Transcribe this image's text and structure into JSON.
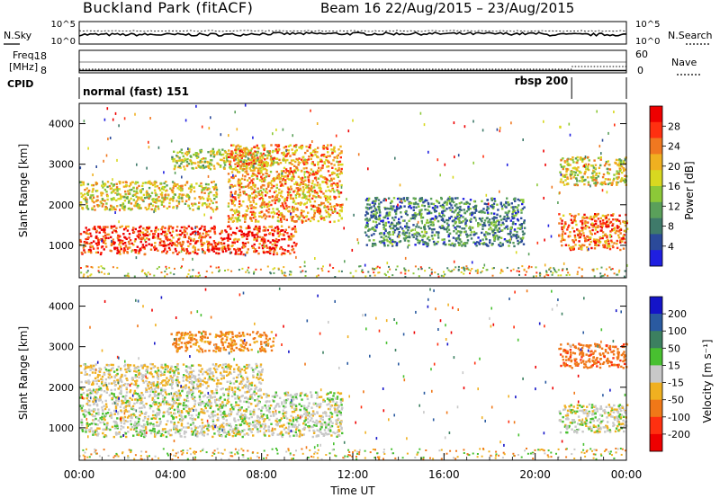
{
  "chart_data": [
    {
      "type": "line",
      "panel": "noise",
      "title": "Buckland Park (fitACF)",
      "subtitle": "Beam 16 22/Aug/2015 – 23/Aug/2015",
      "left_label": "N.Sky",
      "right_label": "N.Search",
      "left_ticks": [
        "10^5",
        "10^0"
      ],
      "right_ticks": [
        "10^5",
        "10^0"
      ]
    },
    {
      "type": "line",
      "panel": "frequency",
      "left_label_lines": [
        "Freq.",
        "[MHz]"
      ],
      "right_label": "Nave",
      "left_ticks": [
        "18",
        "8"
      ],
      "right_ticks": [
        "60",
        "0"
      ],
      "freq_mhz": 9.0
    },
    {
      "type": "table",
      "panel": "cpid",
      "label": "CPID",
      "segments": [
        {
          "name": "normal (fast) 151",
          "start_hour": 0.0,
          "end_hour": 21.6
        },
        {
          "name": "rbsp 200",
          "start_hour": 21.6,
          "end_hour": 24.0
        }
      ]
    },
    {
      "type": "heatmap",
      "panel": "power",
      "ylabel": "Slant Range [km]",
      "yticks": [
        1000,
        2000,
        3000,
        4000
      ],
      "ylim": [
        200,
        4500
      ],
      "xlim": [
        0,
        24
      ],
      "colorbar": {
        "label": "Power [dB]",
        "ticks": [
          "4",
          "8",
          "12",
          "16",
          "20",
          "24",
          "28"
        ],
        "range": [
          0,
          32
        ],
        "colors": [
          "#1f1fe0",
          "#2b4a9a",
          "#3f7a6a",
          "#5aa05a",
          "#8cc838",
          "#d8d820",
          "#f0b020",
          "#f07820",
          "#ff3010",
          "#ee0000"
        ]
      },
      "echo_regions": [
        {
          "start_hour": 0.0,
          "end_hour": 9.5,
          "range_from_km": 800,
          "range_to_km": 1500,
          "power_db": 27
        },
        {
          "start_hour": 0.0,
          "end_hour": 6.0,
          "range_from_km": 1900,
          "range_to_km": 2600,
          "power_db": 18
        },
        {
          "start_hour": 4.0,
          "end_hour": 8.5,
          "range_from_km": 2900,
          "range_to_km": 3400,
          "power_db": 16
        },
        {
          "start_hour": 6.5,
          "end_hour": 11.5,
          "range_from_km": 1600,
          "range_to_km": 3500,
          "power_db": 22
        },
        {
          "start_hour": 12.5,
          "end_hour": 19.5,
          "range_from_km": 1000,
          "range_to_km": 2200,
          "power_db": 9
        },
        {
          "start_hour": 21.0,
          "end_hour": 24.0,
          "range_from_km": 900,
          "range_to_km": 1800,
          "power_db": 25
        },
        {
          "start_hour": 21.0,
          "end_hour": 24.0,
          "range_from_km": 2500,
          "range_to_km": 3200,
          "power_db": 18
        }
      ]
    },
    {
      "type": "heatmap",
      "panel": "velocity",
      "ylabel": "Slant Range [km]",
      "xlabel": "Time UT",
      "yticks": [
        1000,
        2000,
        3000,
        4000
      ],
      "ylim": [
        200,
        4500
      ],
      "xlim": [
        0,
        24
      ],
      "xticks": [
        "00:00",
        "04:00",
        "08:00",
        "12:00",
        "16:00",
        "20:00",
        "00:00"
      ],
      "colorbar": {
        "label": "Velocity [m s⁻¹]",
        "ticks": [
          "200",
          "100",
          "50",
          "15",
          "-15",
          "-50",
          "-100",
          "-200"
        ],
        "colors": [
          "#1414c8",
          "#2a5aa0",
          "#3c8060",
          "#48c030",
          "#c8c8c8",
          "#f0b020",
          "#f07818",
          "#ff3010",
          "#ee0000"
        ]
      },
      "echo_regions": [
        {
          "start_hour": 0.0,
          "end_hour": 11.5,
          "range_from_km": 800,
          "range_to_km": 1900,
          "velocity_ms": 0
        },
        {
          "start_hour": 0.0,
          "end_hour": 8.0,
          "range_from_km": 1900,
          "range_to_km": 2600,
          "velocity_ms": -10
        },
        {
          "start_hour": 4.0,
          "end_hour": 8.5,
          "range_from_km": 2900,
          "range_to_km": 3400,
          "velocity_ms": -60
        },
        {
          "start_hour": 21.0,
          "end_hour": 24.0,
          "range_from_km": 900,
          "range_to_km": 1600,
          "velocity_ms": 0
        },
        {
          "start_hour": 21.0,
          "end_hour": 24.0,
          "range_from_km": 2500,
          "range_to_km": 3100,
          "velocity_ms": -80
        }
      ]
    }
  ]
}
